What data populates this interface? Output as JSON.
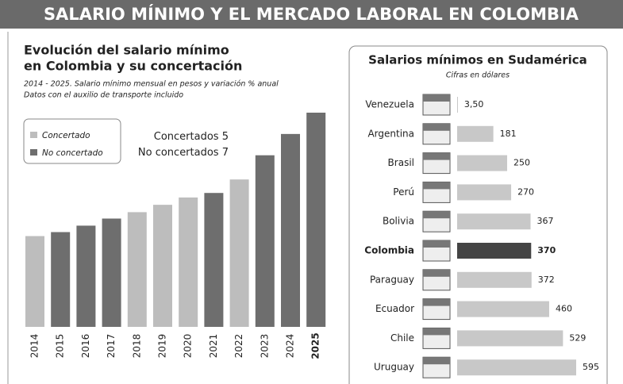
{
  "header": {
    "title": "SALARIO MÍNIMO Y EL MERCADO LABORAL EN COLOMBIA"
  },
  "chart_data": [
    {
      "type": "bar",
      "title": [
        "Evolución del salario mínimo",
        "en Colombia y su concertación"
      ],
      "subtitle": [
        "2014 - 2025. Salario mínimo mensual en pesos y variación % anual",
        "Datos con el auxilio de transporte incluido"
      ],
      "legend": [
        "Concertado",
        "No concertado"
      ],
      "legend_colors": [
        "#bdbdbd",
        "#6e6e6e"
      ],
      "legend_counts": [
        {
          "label": "Concertados",
          "value": 5
        },
        {
          "label": "No concertados",
          "value": 7
        }
      ],
      "categories": [
        "2014",
        "2015",
        "2016",
        "2017",
        "2018",
        "2019",
        "2020",
        "2021",
        "2022",
        "2023",
        "2024",
        "2025"
      ],
      "values": [
        688000,
        718350,
        767155,
        820857,
        869453,
        925148,
        980657,
        1014980,
        1117172,
        1300606,
        1462000,
        1623500
      ],
      "colors": [
        "#bdbdbd",
        "#6e6e6e",
        "#6e6e6e",
        "#6e6e6e",
        "#bdbdbd",
        "#bdbdbd",
        "#bdbdbd",
        "#6e6e6e",
        "#bdbdbd",
        "#6e6e6e",
        "#6e6e6e",
        "#6e6e6e"
      ]
    },
    {
      "type": "hbar",
      "title": "Salarios mínimos en Sudamérica",
      "subtitle": "Cifras en dólares",
      "categories": [
        "Venezuela",
        "Argentina",
        "Brasil",
        "Perú",
        "Bolivia",
        "Colombia",
        "Paraguay",
        "Ecuador",
        "Chile",
        "Uruguay"
      ],
      "values": [
        3.5,
        181,
        250,
        270,
        367,
        370,
        372,
        460,
        529,
        595
      ],
      "value_labels": [
        "3,50",
        "181",
        "250",
        "270",
        "367",
        "370",
        "372",
        "460",
        "529",
        "595"
      ],
      "colors": [
        "#c8c8c8",
        "#c8c8c8",
        "#c8c8c8",
        "#c8c8c8",
        "#c8c8c8",
        "#444444",
        "#c8c8c8",
        "#c8c8c8",
        "#c8c8c8",
        "#c8c8c8"
      ]
    }
  ]
}
